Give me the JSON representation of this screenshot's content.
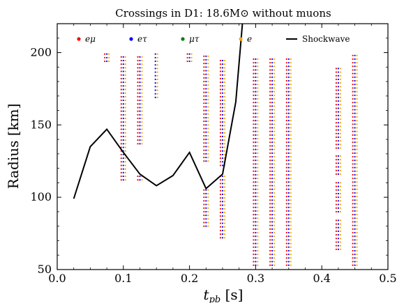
{
  "chart_data": {
    "type": "scatter",
    "title": "Crossings in D1: 18.6M⊙ without muons",
    "xlabel": "t_pb [s]",
    "ylabel": "Radius [km]",
    "xlim": [
      0.0,
      0.5
    ],
    "ylim": [
      50,
      220
    ],
    "xticks": [
      "0.0",
      "0.1",
      "0.2",
      "0.3",
      "0.4",
      "0.5"
    ],
    "xtick_values": [
      0.0,
      0.1,
      0.2,
      0.3,
      0.4,
      0.5
    ],
    "yticks": [
      "50",
      "100",
      "150",
      "200"
    ],
    "ytick_values": [
      50,
      100,
      150,
      200
    ],
    "grid": false,
    "legend_position": "top",
    "legend": [
      {
        "label": "eμ",
        "kind": "dot",
        "color": "#ff0000"
      },
      {
        "label": "eτ",
        "kind": "dot",
        "color": "#0000ff"
      },
      {
        "label": "μτ",
        "kind": "dot",
        "color": "#008000"
      },
      {
        "label": "e",
        "kind": "dot",
        "color": "#ffa500"
      },
      {
        "label": "Shockwave",
        "kind": "line",
        "color": "#000000"
      }
    ],
    "shockwave": {
      "name": "Shockwave",
      "x": [
        0.025,
        0.05,
        0.075,
        0.1,
        0.125,
        0.15,
        0.175,
        0.2,
        0.225,
        0.25,
        0.27,
        0.28
      ],
      "y": [
        99,
        135,
        147,
        131,
        116,
        108,
        115,
        131,
        106,
        116,
        166,
        220
      ]
    },
    "crossing_columns": [
      {
        "x": 0.075,
        "segments": [
          [
            194,
            199
          ]
        ],
        "colors": [
          "red",
          "blue",
          "orange"
        ]
      },
      {
        "x": 0.1,
        "segments": [
          [
            112,
            199
          ]
        ],
        "colors": [
          "red",
          "blue",
          "orange"
        ]
      },
      {
        "x": 0.125,
        "segments": [
          [
            112,
            116
          ],
          [
            137,
            199
          ]
        ],
        "colors": [
          "red",
          "blue",
          "orange"
        ]
      },
      {
        "x": 0.15,
        "segments": [
          [
            169,
            199
          ]
        ],
        "colors": [
          "blue",
          "orange"
        ]
      },
      {
        "x": 0.2,
        "segments": [
          [
            194,
            199
          ]
        ],
        "colors": [
          "red",
          "blue",
          "orange"
        ]
      },
      {
        "x": 0.225,
        "segments": [
          [
            80,
            106
          ],
          [
            125,
            199
          ]
        ],
        "colors": [
          "red",
          "blue",
          "orange"
        ]
      },
      {
        "x": 0.25,
        "segments": [
          [
            72,
            116
          ],
          [
            122,
            196
          ]
        ],
        "colors": [
          "red",
          "blue",
          "orange"
        ]
      },
      {
        "x": 0.3,
        "segments": [
          [
            53,
            196
          ]
        ],
        "colors": [
          "red",
          "blue",
          "orange"
        ]
      },
      {
        "x": 0.325,
        "segments": [
          [
            53,
            196
          ]
        ],
        "colors": [
          "red",
          "blue",
          "orange"
        ]
      },
      {
        "x": 0.35,
        "segments": [
          [
            53,
            196
          ]
        ],
        "colors": [
          "red",
          "blue",
          "orange"
        ]
      },
      {
        "x": 0.425,
        "segments": [
          [
            64,
            86
          ],
          [
            90,
            112
          ],
          [
            116,
            130
          ],
          [
            134,
            191
          ]
        ],
        "colors": [
          "red",
          "blue",
          "orange"
        ]
      },
      {
        "x": 0.45,
        "segments": [
          [
            53,
            199
          ]
        ],
        "colors": [
          "red",
          "blue",
          "orange"
        ]
      }
    ]
  }
}
